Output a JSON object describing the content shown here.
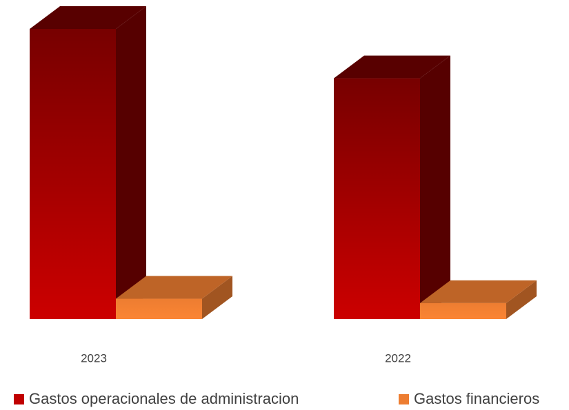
{
  "chart_data": {
    "type": "bar3d",
    "categories": [
      "2023",
      "2022"
    ],
    "series": [
      {
        "name": "Gastos operacionales de administracion",
        "color": "#c00000",
        "values": [
          100,
          83
        ]
      },
      {
        "name": "Gastos financieros",
        "color": "#ed7d31",
        "values": [
          7,
          5.5
        ]
      }
    ],
    "ylim": [
      0,
      100
    ],
    "legend": "bottom"
  }
}
